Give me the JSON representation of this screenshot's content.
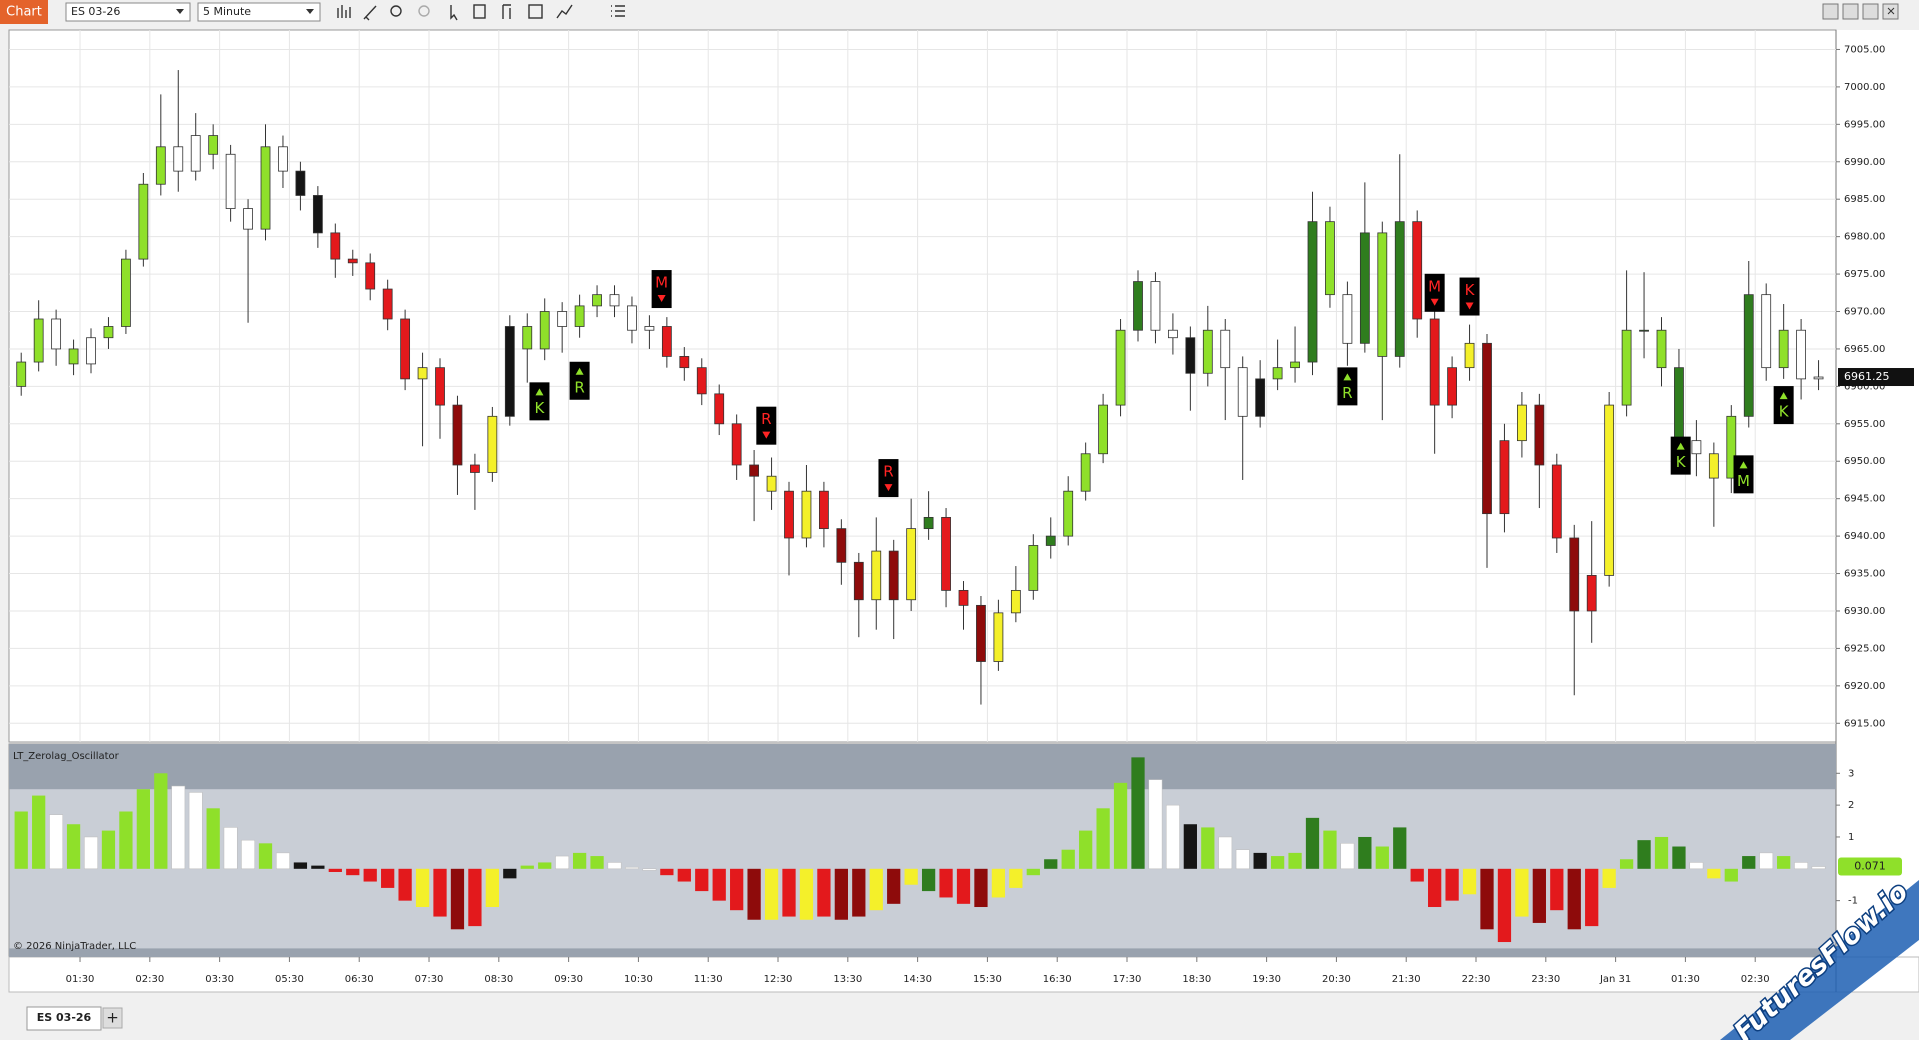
{
  "ui": {
    "app_button": "Chart",
    "instrument": "ES 03-26",
    "interval": "5 Minute",
    "tab": "ES 03-26",
    "add_tab": "+",
    "watermark": "FuturesFlow.io"
  },
  "chart_data": [
    {
      "type": "candlestick",
      "palette": {
        "g": "#8fe02a",
        "G": "#2f7d1e",
        "r": "#e3191c",
        "R": "#8e0b0b",
        "y": "#f4f02a",
        "w": "#ffffff",
        "b": "#151515"
      },
      "candle_colors": "ggwgwggggwwgwwgwbbrrrrryrRrybggwggwwwrrrrrRyryrRRyRyGrrRyygGggggGwwbgwwbggGgwGgGrrryRryRrRrygGgGwygGwgww",
      "open": [
        6960,
        6963.25,
        6969,
        6965,
        6963,
        6966.5,
        6968,
        6977,
        6987,
        6992,
        6988.75,
        6993.5,
        6991,
        6983.75,
        6981,
        6992,
        6988.75,
        6985.5,
        6980.5,
        6977,
        6976.5,
        6973,
        6969,
        6961,
        6962.5,
        6957.5,
        6949.5,
        6948.5,
        6956,
        6968,
        6965,
        6970,
        6968,
        6970.75,
        6972.25,
        6970.75,
        6967.5,
        6968,
        6964,
        6962.5,
        6959,
        6955,
        6949.5,
        6948,
        6946,
        6939.75,
        6946,
        6941,
        6936.5,
        6931.5,
        6938,
        6931.5,
        6941,
        6942.5,
        6932.75,
        6930.75,
        6923.25,
        6929.75,
        6932.75,
        6938.75,
        6940,
        6946,
        6951,
        6957.5,
        6967.5,
        6974,
        6967.5,
        6966.5,
        6961.75,
        6967.5,
        6962.5,
        6956,
        6961,
        6962.5,
        6963.25,
        6982,
        6972.25,
        6965.75,
        6980.5,
        6964,
        6982,
        6969,
        6957.5,
        6962.5,
        6965.75,
        6943,
        6952.75,
        6957.5,
        6949.5,
        6939.75,
        6930,
        6934.75,
        6957.5,
        6967.5,
        6967.5,
        6962.5,
        6952.75,
        6951,
        6947.75,
        6956,
        6972.25,
        6962.5,
        6967.5,
        6961
      ],
      "high": [
        6964.5,
        6971.5,
        6970.25,
        6966.25,
        6967.75,
        6969.25,
        6978.25,
        6988.5,
        6999,
        7002.25,
        6996.5,
        6995,
        6992.25,
        6985,
        6995,
        6993.5,
        6990,
        6986.75,
        6981.75,
        6978.25,
        6977.75,
        6974.25,
        6970.25,
        6964.5,
        6963.75,
        6958.75,
        6951,
        6957.25,
        6969.5,
        6969.75,
        6971.75,
        6971.25,
        6972.25,
        6973.5,
        6973.5,
        6972,
        6969.5,
        6969.25,
        6965.25,
        6963.75,
        6960.25,
        6956.25,
        6951.5,
        6950.5,
        6947.25,
        6949.5,
        6947.25,
        6942.25,
        6937.75,
        6942.5,
        6939.5,
        6945,
        6946,
        6943.75,
        6934,
        6932,
        6931.5,
        6936,
        6940.25,
        6942.5,
        6948,
        6952.5,
        6959,
        6969,
        6975.5,
        6975.25,
        6969.75,
        6968,
        6970.75,
        6969,
        6964,
        6963.5,
        6966.25,
        6968,
        6986,
        6984,
        6974,
        6987.25,
        6982,
        6991,
        6983.5,
        6970.25,
        6964,
        6968.25,
        6967,
        6955,
        6959.25,
        6959,
        6951,
        6941.5,
        6942,
        6959.25,
        6975.5,
        6975.25,
        6969.25,
        6965,
        6955.5,
        6952.5,
        6957.5,
        6976.75,
        6973.75,
        6971,
        6969,
        6963.5
      ],
      "low": [
        6958.75,
        6962,
        6962.75,
        6961.5,
        6961.75,
        6965,
        6967,
        6976,
        6985.5,
        6986,
        6987.5,
        6989,
        6982,
        6968.5,
        6979.5,
        6986.5,
        6983.5,
        6978.5,
        6974.5,
        6974.75,
        6971.5,
        6967.5,
        6959.5,
        6952,
        6953,
        6945.5,
        6943.5,
        6947.25,
        6954.75,
        6960.5,
        6963.5,
        6964.5,
        6966.5,
        6969.25,
        6969.25,
        6965.75,
        6965,
        6962.5,
        6960.75,
        6957.5,
        6953.5,
        6947.5,
        6942,
        6943.5,
        6934.75,
        6938.5,
        6938.5,
        6933.5,
        6926.5,
        6927.5,
        6926.25,
        6930,
        6939.5,
        6930.5,
        6927.5,
        6917.5,
        6922,
        6928.5,
        6931.5,
        6937,
        6938.75,
        6944.75,
        6949.75,
        6956,
        6966,
        6965.75,
        6964.25,
        6956.75,
        6960,
        6955.5,
        6947.5,
        6954.5,
        6959.5,
        6960.5,
        6961.5,
        6970.5,
        6962.75,
        6964.5,
        6955.5,
        6962.5,
        6966.5,
        6951,
        6955.75,
        6960.75,
        6935.75,
        6940.5,
        6950.5,
        6943.75,
        6937.75,
        6918.75,
        6925.75,
        6933.25,
        6956,
        6963.75,
        6960,
        6949.5,
        6948,
        6941.25,
        6945.75,
        6954.5,
        6960.75,
        6961,
        6958.25,
        6959.5
      ],
      "close": [
        6963.25,
        6969,
        6965,
        6963,
        6966.5,
        6968,
        6977,
        6987,
        6992,
        6988.75,
        6993.5,
        6991,
        6983.75,
        6981,
        6992,
        6988.75,
        6985.5,
        6980.5,
        6977,
        6976.5,
        6973,
        6969,
        6961,
        6962.5,
        6957.5,
        6949.5,
        6948.5,
        6956,
        6968,
        6965,
        6970,
        6968,
        6970.75,
        6972.25,
        6970.75,
        6967.5,
        6968,
        6964,
        6962.5,
        6959,
        6955,
        6949.5,
        6948,
        6946,
        6939.75,
        6946,
        6941,
        6936.5,
        6931.5,
        6938,
        6931.5,
        6941,
        6942.5,
        6932.75,
        6930.75,
        6923.25,
        6929.75,
        6932.75,
        6938.75,
        6940,
        6946,
        6951,
        6957.5,
        6967.5,
        6974,
        6967.5,
        6966.5,
        6961.75,
        6967.5,
        6962.5,
        6956,
        6961,
        6962.5,
        6963.25,
        6982,
        6972.25,
        6965.75,
        6980.5,
        6964,
        6982,
        6969,
        6957.5,
        6962.5,
        6965.75,
        6943,
        6952.75,
        6957.5,
        6949.5,
        6939.75,
        6930,
        6934.75,
        6957.5,
        6967.5,
        6967.5,
        6962.5,
        6952.75,
        6951,
        6947.75,
        6956,
        6972.25,
        6962.5,
        6967.5,
        6961,
        6961.25
      ],
      "last_price": 6961.25,
      "signals": [
        {
          "index": 29.7,
          "price": 6958,
          "label": "K",
          "dir": "up"
        },
        {
          "index": 32,
          "price": 6960.75,
          "label": "R",
          "dir": "up"
        },
        {
          "index": 36.7,
          "price": 6973,
          "label": "M",
          "dir": "down"
        },
        {
          "index": 42.7,
          "price": 6954.75,
          "label": "R",
          "dir": "down"
        },
        {
          "index": 49.7,
          "price": 6947.75,
          "label": "R",
          "dir": "down"
        },
        {
          "index": 76,
          "price": 6960,
          "label": "R",
          "dir": "up"
        },
        {
          "index": 81,
          "price": 6972.5,
          "label": "M",
          "dir": "down"
        },
        {
          "index": 83,
          "price": 6972,
          "label": "K",
          "dir": "down"
        },
        {
          "index": 95.1,
          "price": 6950.75,
          "label": "K",
          "dir": "up"
        },
        {
          "index": 98.7,
          "price": 6948.25,
          "label": "M",
          "dir": "up"
        },
        {
          "index": 101,
          "price": 6957.5,
          "label": "K",
          "dir": "up"
        }
      ],
      "xlim": [
        -0.7,
        104
      ],
      "xticks": [
        {
          "value": 3.37,
          "label": "01:30"
        },
        {
          "value": 7.37,
          "label": "02:30"
        },
        {
          "value": 11.37,
          "label": "03:30"
        },
        {
          "value": 15.37,
          "label": "05:30"
        },
        {
          "value": 19.37,
          "label": "06:30"
        },
        {
          "value": 23.37,
          "label": "07:30"
        },
        {
          "value": 27.37,
          "label": "08:30"
        },
        {
          "value": 31.37,
          "label": "09:30"
        },
        {
          "value": 35.37,
          "label": "10:30"
        },
        {
          "value": 39.37,
          "label": "11:30"
        },
        {
          "value": 43.37,
          "label": "12:30"
        },
        {
          "value": 47.37,
          "label": "13:30"
        },
        {
          "value": 51.37,
          "label": "14:30"
        },
        {
          "value": 55.37,
          "label": "15:30"
        },
        {
          "value": 59.37,
          "label": "16:30"
        },
        {
          "value": 63.37,
          "label": "17:30"
        },
        {
          "value": 67.37,
          "label": "18:30"
        },
        {
          "value": 71.37,
          "label": "19:30"
        },
        {
          "value": 75.37,
          "label": "20:30"
        },
        {
          "value": 79.37,
          "label": "21:30"
        },
        {
          "value": 83.37,
          "label": "22:30"
        },
        {
          "value": 87.37,
          "label": "23:30"
        },
        {
          "value": 91.37,
          "label": "Jan 31"
        },
        {
          "value": 95.37,
          "label": "01:30"
        },
        {
          "value": 99.37,
          "label": "02:30"
        }
      ],
      "ylim": [
        6912.5,
        7007.6
      ],
      "yticks": [
        {
          "value": 6915,
          "label": "6915.00"
        },
        {
          "value": 6920,
          "label": "6920.00"
        },
        {
          "value": 6925,
          "label": "6925.00"
        },
        {
          "value": 6930,
          "label": "6930.00"
        },
        {
          "value": 6935,
          "label": "6935.00"
        },
        {
          "value": 6940,
          "label": "6940.00"
        },
        {
          "value": 6945,
          "label": "6945.00"
        },
        {
          "value": 6950,
          "label": "6950.00"
        },
        {
          "value": 6955,
          "label": "6955.00"
        },
        {
          "value": 6960,
          "label": "6960.00"
        },
        {
          "value": 6965,
          "label": "6965.00"
        },
        {
          "value": 6970,
          "label": "6970.00"
        },
        {
          "value": 6975,
          "label": "6975.00"
        },
        {
          "value": 6980,
          "label": "6980.00"
        },
        {
          "value": 6985,
          "label": "6985.00"
        },
        {
          "value": 6990,
          "label": "6990.00"
        },
        {
          "value": 6995,
          "label": "6995.00"
        },
        {
          "value": 7000,
          "label": "7000.00"
        },
        {
          "value": 7005,
          "label": "7005.00"
        }
      ],
      "grid": true
    },
    {
      "type": "bar",
      "title": "LT_Zerolag_Oscillator",
      "annotation": "© 2026 NinjaTrader, LLC",
      "values": [
        1.8,
        2.3,
        1.7,
        1.4,
        1.0,
        1.2,
        1.8,
        2.5,
        3.0,
        2.6,
        2.4,
        1.9,
        1.3,
        0.9,
        0.8,
        0.5,
        0.2,
        0.1,
        -0.1,
        -0.2,
        -0.4,
        -0.6,
        -1.0,
        -1.2,
        -1.5,
        -1.9,
        -1.8,
        -1.2,
        -0.3,
        0.1,
        0.2,
        0.4,
        0.5,
        0.4,
        0.2,
        0.05,
        -0.05,
        -0.2,
        -0.4,
        -0.7,
        -1.0,
        -1.3,
        -1.6,
        -1.6,
        -1.5,
        -1.6,
        -1.5,
        -1.6,
        -1.5,
        -1.3,
        -1.1,
        -0.5,
        -0.7,
        -0.9,
        -1.1,
        -1.2,
        -0.9,
        -0.6,
        -0.2,
        0.3,
        0.6,
        1.2,
        1.9,
        2.7,
        3.5,
        2.8,
        2.0,
        1.4,
        1.3,
        1.0,
        0.6,
        0.5,
        0.4,
        0.5,
        1.6,
        1.2,
        0.8,
        1.0,
        0.7,
        1.3,
        -0.4,
        -1.2,
        -1.0,
        -0.8,
        -1.9,
        -2.3,
        -1.5,
        -1.7,
        -1.3,
        -1.9,
        -1.8,
        -0.6,
        0.3,
        0.9,
        1.0,
        0.7,
        0.2,
        -0.3,
        -0.4,
        0.4,
        0.5,
        0.4,
        0.2,
        0.071
      ],
      "levels": [
        2.5,
        -2.5
      ],
      "ylim": [
        -2.77,
        3.92
      ],
      "yticks": [
        3,
        2,
        1,
        -1
      ]
    }
  ]
}
